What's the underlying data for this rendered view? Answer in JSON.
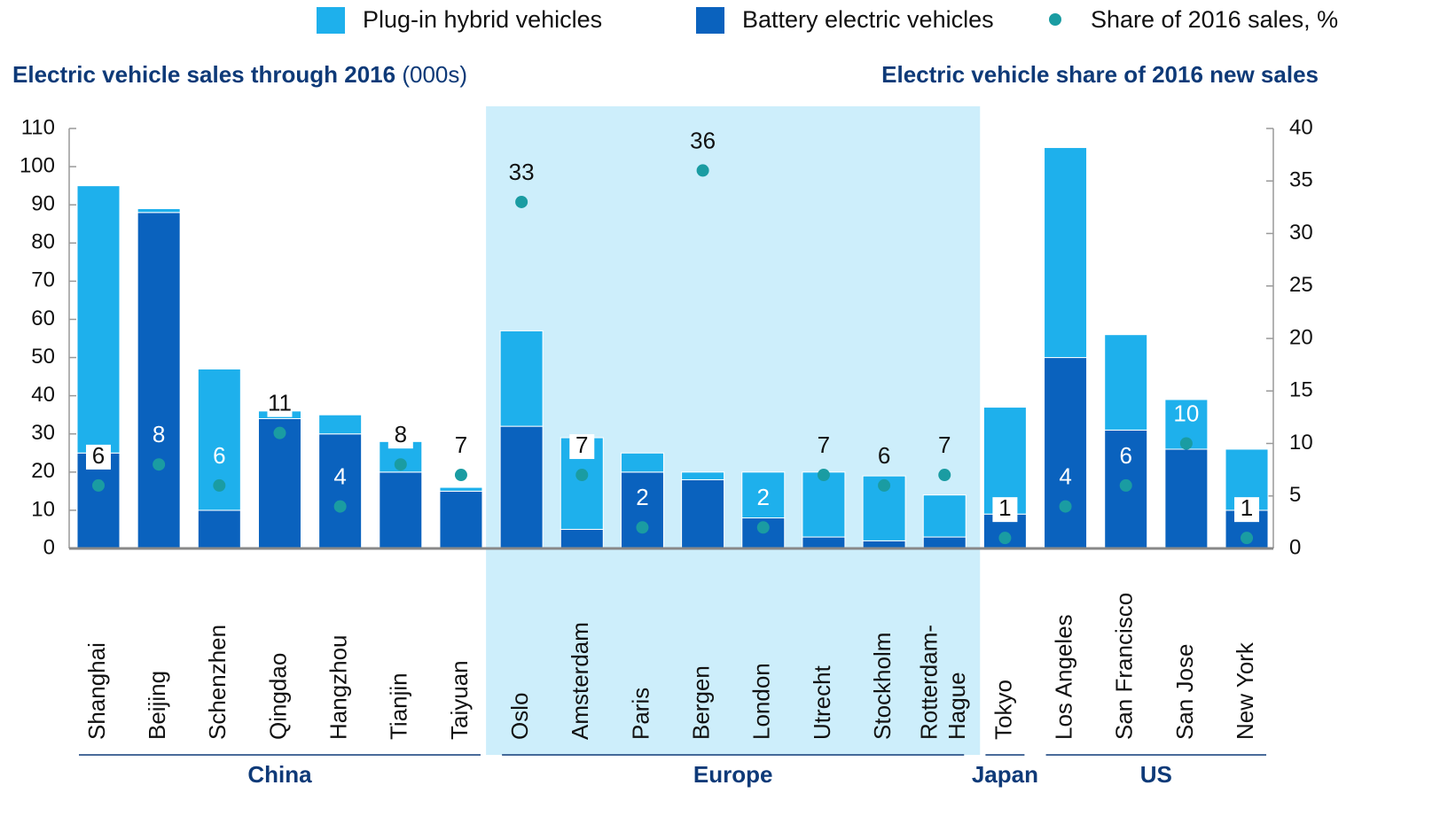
{
  "chart_data": {
    "type": "bar",
    "stacked": true,
    "title": "Electric vehicle sales through 2016",
    "title_unit": "(000s)",
    "y2_title": "Electric vehicle share of 2016 new sales",
    "categories": [
      "Shanghai",
      "Beijing",
      "Schenzhen",
      "Qingdao",
      "Hangzhou",
      "Tianjin",
      "Taiyuan",
      "Oslo",
      "Amsterdam",
      "Paris",
      "Bergen",
      "London",
      "Utrecht",
      "Stockholm",
      "Rotterdam-Hague",
      "Tokyo",
      "Los Angeles",
      "San Francisco",
      "San Jose",
      "New York"
    ],
    "category_groups": [
      "China",
      "China",
      "China",
      "China",
      "China",
      "China",
      "China",
      "Europe",
      "Europe",
      "Europe",
      "Europe",
      "Europe",
      "Europe",
      "Europe",
      "Europe",
      "Japan",
      "US",
      "US",
      "US",
      "US"
    ],
    "highlight": {
      "group": "Europe",
      "color": "#cdeefb"
    },
    "series": [
      {
        "name": "Plug-in hybrid vehicles",
        "color": "#1eb0ec",
        "values": [
          70,
          1,
          37,
          2,
          5,
          8,
          1,
          25,
          24,
          5,
          2,
          12,
          17,
          17,
          11,
          28,
          55,
          25,
          13,
          16
        ]
      },
      {
        "name": "Battery electric vehicles",
        "color": "#0a62be",
        "values": [
          25,
          88,
          10,
          34,
          30,
          20,
          15,
          32,
          5,
          20,
          18,
          8,
          3,
          2,
          3,
          9,
          50,
          31,
          26,
          10
        ]
      },
      {
        "name": "Share of 2016 sales, %",
        "color": "#1a9ca2",
        "type": "scatter",
        "axis": "y2",
        "values": [
          6,
          8,
          6,
          11,
          4,
          8,
          7,
          33,
          7,
          2,
          36,
          2,
          7,
          6,
          7,
          1,
          4,
          6,
          10,
          1
        ]
      }
    ],
    "ylim": [
      0,
      110
    ],
    "yticks": [
      0,
      10,
      20,
      30,
      40,
      50,
      60,
      70,
      80,
      90,
      100,
      110
    ],
    "y2lim": [
      0,
      40
    ],
    "y2ticks": [
      0,
      5,
      10,
      15,
      20,
      25,
      30,
      35,
      40
    ]
  }
}
